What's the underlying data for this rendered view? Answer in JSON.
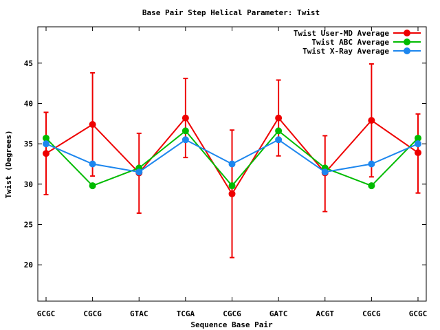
{
  "chart_data": {
    "type": "line",
    "title": "Base Pair Step Helical Parameter: Twist",
    "xlabel": "Sequence Base Pair",
    "ylabel": "Twist (Degrees)",
    "categories": [
      "GCGC",
      "CGCG",
      "GTAC",
      "TCGA",
      "CGCG",
      "GATC",
      "ACGT",
      "CGCG",
      "GCGC"
    ],
    "ylim": [
      15.5,
      49.5
    ],
    "yticks": [
      20,
      25,
      30,
      35,
      40,
      45
    ],
    "grid": false,
    "legend_position": "top-right",
    "series": [
      {
        "name": "Twist User-MD Average",
        "color": "#ee0000",
        "values": [
          33.8,
          37.4,
          31.4,
          38.2,
          28.8,
          38.2,
          31.4,
          37.9,
          33.9
        ],
        "error_low": [
          28.7,
          31.0,
          26.4,
          33.3,
          20.9,
          33.5,
          26.6,
          30.9,
          28.9
        ],
        "error_high": [
          38.9,
          43.8,
          36.3,
          43.1,
          36.7,
          42.9,
          36.0,
          44.9,
          38.7
        ]
      },
      {
        "name": "Twist ABC Average",
        "color": "#00bb00",
        "values": [
          35.7,
          29.8,
          32.0,
          36.6,
          29.8,
          36.6,
          32.0,
          29.8,
          35.7
        ]
      },
      {
        "name": "Twist X-Ray Average",
        "color": "#1c86ee",
        "values": [
          35.0,
          32.5,
          31.5,
          35.5,
          32.5,
          35.5,
          31.5,
          32.5,
          35.0
        ]
      }
    ]
  }
}
